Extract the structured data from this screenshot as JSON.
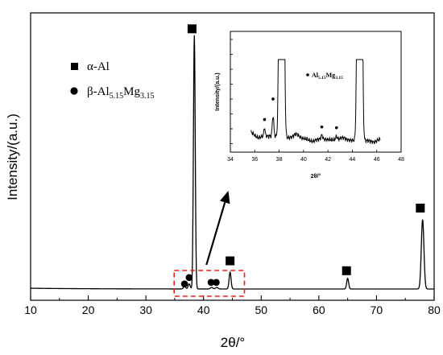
{
  "chart_data": [
    {
      "type": "line",
      "xlabel": "2θ/°",
      "ylabel": "Intensity/(a.u.)",
      "xlim": [
        10,
        80
      ],
      "xticks": [
        10,
        20,
        30,
        40,
        50,
        60,
        70,
        80
      ],
      "y_ticks_shown": false,
      "grid": false,
      "legend_position": "top-left",
      "legend": [
        {
          "marker": "square",
          "label": "α-Al"
        },
        {
          "marker": "circle",
          "label_main": "β-Al",
          "sub1": "5.15",
          "mid": "Mg",
          "sub2": "3.15"
        }
      ],
      "series": [
        {
          "peaks": [
            {
              "x": 38.4,
              "height": 1.0,
              "phase": "alpha"
            },
            {
              "x": 44.6,
              "height": 0.066,
              "phase": "alpha"
            },
            {
              "x": 65.0,
              "height": 0.042,
              "phase": "alpha"
            },
            {
              "x": 78.0,
              "height": 0.274,
              "phase": "alpha"
            }
          ]
        }
      ],
      "markers": [
        {
          "phase": "alpha",
          "shape": "square",
          "x": 38.0,
          "y": 1.026
        },
        {
          "phase": "alpha",
          "shape": "square",
          "x": 44.6,
          "y": 0.111
        },
        {
          "phase": "alpha",
          "shape": "square",
          "x": 64.8,
          "y": 0.072
        },
        {
          "phase": "alpha",
          "shape": "square",
          "x": 77.6,
          "y": 0.319
        },
        {
          "phase": "beta",
          "shape": "circle",
          "x": 36.7,
          "y": 0.02
        },
        {
          "phase": "beta",
          "shape": "circle",
          "x": 37.5,
          "y": 0.045
        },
        {
          "phase": "beta",
          "shape": "circle",
          "x": 41.3,
          "y": 0.026
        },
        {
          "phase": "beta",
          "shape": "circle",
          "x": 42.2,
          "y": 0.026
        }
      ],
      "highlight_box": {
        "x_range": [
          34.9,
          47.1
        ],
        "style": "red-dashed"
      },
      "arrow": {
        "from_x": 40.5,
        "to_x": 44.3
      }
    },
    {
      "type": "line",
      "title": "inset",
      "xlabel": "2θ/°",
      "ylabel": "Intensity/(a.u.)",
      "xlim": [
        34,
        48
      ],
      "xticks": [
        34,
        36,
        38,
        40,
        42,
        44,
        46,
        48
      ],
      "annotation": {
        "main": "Al",
        "sub1": "5.15",
        "mid": "Mg",
        "sub2": "3.15"
      },
      "series": [
        {
          "peaks": [
            {
              "x": 38.2,
              "height": 1.0,
              "clipped": true
            },
            {
              "x": 44.6,
              "height": 1.0,
              "clipped": true
            },
            {
              "x": 37.5,
              "height": 0.25
            },
            {
              "x": 36.8,
              "height": 0.1
            },
            {
              "x": 41.5,
              "height": 0.05
            },
            {
              "x": 42.7,
              "height": 0.04
            }
          ]
        }
      ],
      "markers": [
        {
          "shape": "circle",
          "x": 36.8
        },
        {
          "shape": "circle",
          "x": 37.5
        },
        {
          "shape": "circle",
          "x": 41.5
        },
        {
          "shape": "circle",
          "x": 42.7
        }
      ]
    }
  ]
}
